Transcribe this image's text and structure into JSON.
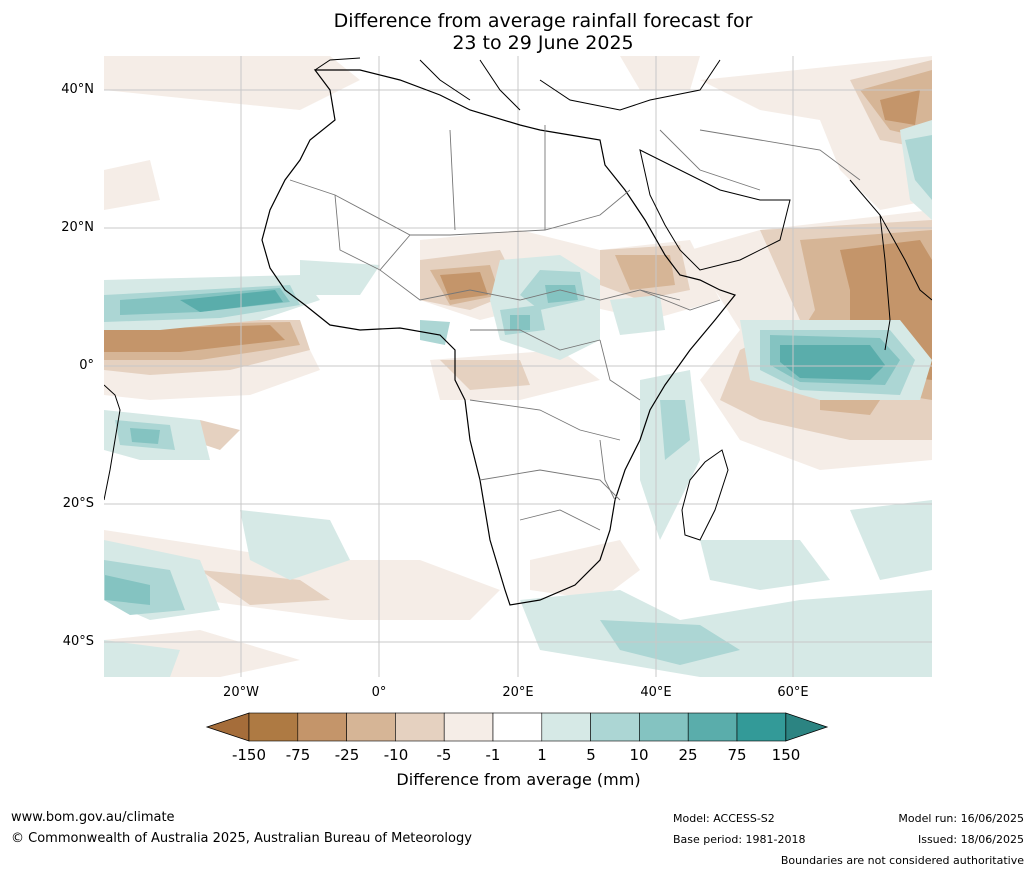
{
  "title": {
    "line1": "Difference from average rainfall forecast for",
    "line2": "23 to 29 June 2025"
  },
  "map": {
    "lat_labels": [
      "40°N",
      "20°N",
      "0°",
      "20°S",
      "40°S"
    ],
    "lon_labels": [
      "20°W",
      "0°",
      "20°E",
      "40°E",
      "60°E"
    ]
  },
  "colorbar": {
    "title": "Difference from average (mm)",
    "labels": [
      "-150",
      "-75",
      "-25",
      "-10",
      "-5",
      "-1",
      "1",
      "5",
      "10",
      "25",
      "75",
      "150"
    ],
    "colors": [
      "#a56d3a",
      "#ae7a43",
      "#c4956a",
      "#d6b596",
      "#e5d1c0",
      "#f5ede7",
      "#ffffff",
      "#d6e9e6",
      "#acd6d4",
      "#84c3c1",
      "#5aadab",
      "#339a98",
      "#2c8482"
    ]
  },
  "footer": {
    "url": "www.bom.gov.au/climate",
    "copyright": "© Commonwealth of Australia 2025, Australian Bureau of Meteorology",
    "model": "Model: ACCESS-S2",
    "base_period": "Base period: 1981-2018",
    "model_run": "Model run: 16/06/2025",
    "issued": "Issued: 18/06/2025",
    "disclaimer": "Boundaries are not considered authoritative"
  }
}
